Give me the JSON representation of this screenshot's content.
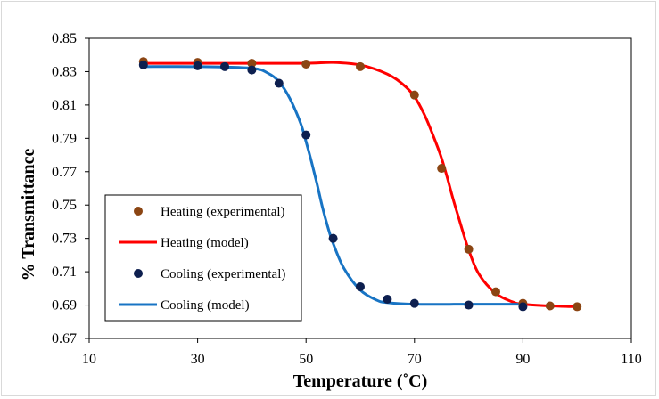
{
  "chart_data": {
    "type": "scatter",
    "xlabel": "Temperature (˚C)",
    "ylabel": "% Transmittance",
    "xlim": [
      10,
      110
    ],
    "ylim": [
      0.67,
      0.85
    ],
    "x_ticks": [
      "10",
      "30",
      "50",
      "70",
      "90",
      "110"
    ],
    "y_ticks": [
      "0.67",
      "0.69",
      "0.71",
      "0.73",
      "0.75",
      "0.77",
      "0.79",
      "0.81",
      "0.83",
      "0.85"
    ],
    "x_tick_values": [
      10,
      30,
      50,
      70,
      90,
      110
    ],
    "y_tick_values": [
      0.67,
      0.69,
      0.71,
      0.73,
      0.75,
      0.77,
      0.79,
      0.81,
      0.83,
      0.85
    ],
    "grid": false,
    "legend_position": "bottom-left",
    "series": [
      {
        "name": "Heating (experimental)",
        "kind": "markers",
        "color": "#8B4513",
        "x": [
          20,
          30,
          40,
          50,
          60,
          70,
          75,
          80,
          85,
          90,
          95,
          100
        ],
        "y": [
          0.836,
          0.8355,
          0.835,
          0.8345,
          0.833,
          0.816,
          0.772,
          0.7235,
          0.698,
          0.691,
          0.6895,
          0.689
        ]
      },
      {
        "name": "Heating (model)",
        "kind": "line",
        "color": "#FF0000",
        "x": [
          20,
          30,
          40,
          50,
          55,
          60,
          65,
          68,
          70,
          72,
          74,
          75,
          76,
          77,
          78,
          80,
          82,
          85,
          88,
          90,
          95,
          100
        ],
        "y": [
          0.835,
          0.835,
          0.835,
          0.835,
          0.8355,
          0.834,
          0.8285,
          0.822,
          0.815,
          0.803,
          0.787,
          0.778,
          0.767,
          0.755,
          0.744,
          0.723,
          0.708,
          0.697,
          0.692,
          0.6905,
          0.6895,
          0.689
        ]
      },
      {
        "name": "Cooling (experimental)",
        "kind": "markers",
        "color": "#0D1F4F",
        "x": [
          20,
          30,
          35,
          40,
          45,
          50,
          55,
          60,
          65,
          70,
          80,
          90
        ],
        "y": [
          0.834,
          0.8335,
          0.833,
          0.831,
          0.823,
          0.792,
          0.73,
          0.701,
          0.6935,
          0.691,
          0.69,
          0.689
        ]
      },
      {
        "name": "Cooling (model)",
        "kind": "line",
        "color": "#1874C4",
        "x": [
          20,
          30,
          40,
          43,
          45,
          47,
          49,
          50,
          51,
          52,
          53,
          54,
          55,
          57,
          60,
          63,
          65,
          70,
          80,
          90
        ],
        "y": [
          0.833,
          0.833,
          0.832,
          0.829,
          0.824,
          0.814,
          0.799,
          0.788,
          0.776,
          0.763,
          0.749,
          0.737,
          0.727,
          0.712,
          0.699,
          0.693,
          0.6915,
          0.6905,
          0.6905,
          0.6905
        ]
      }
    ]
  }
}
